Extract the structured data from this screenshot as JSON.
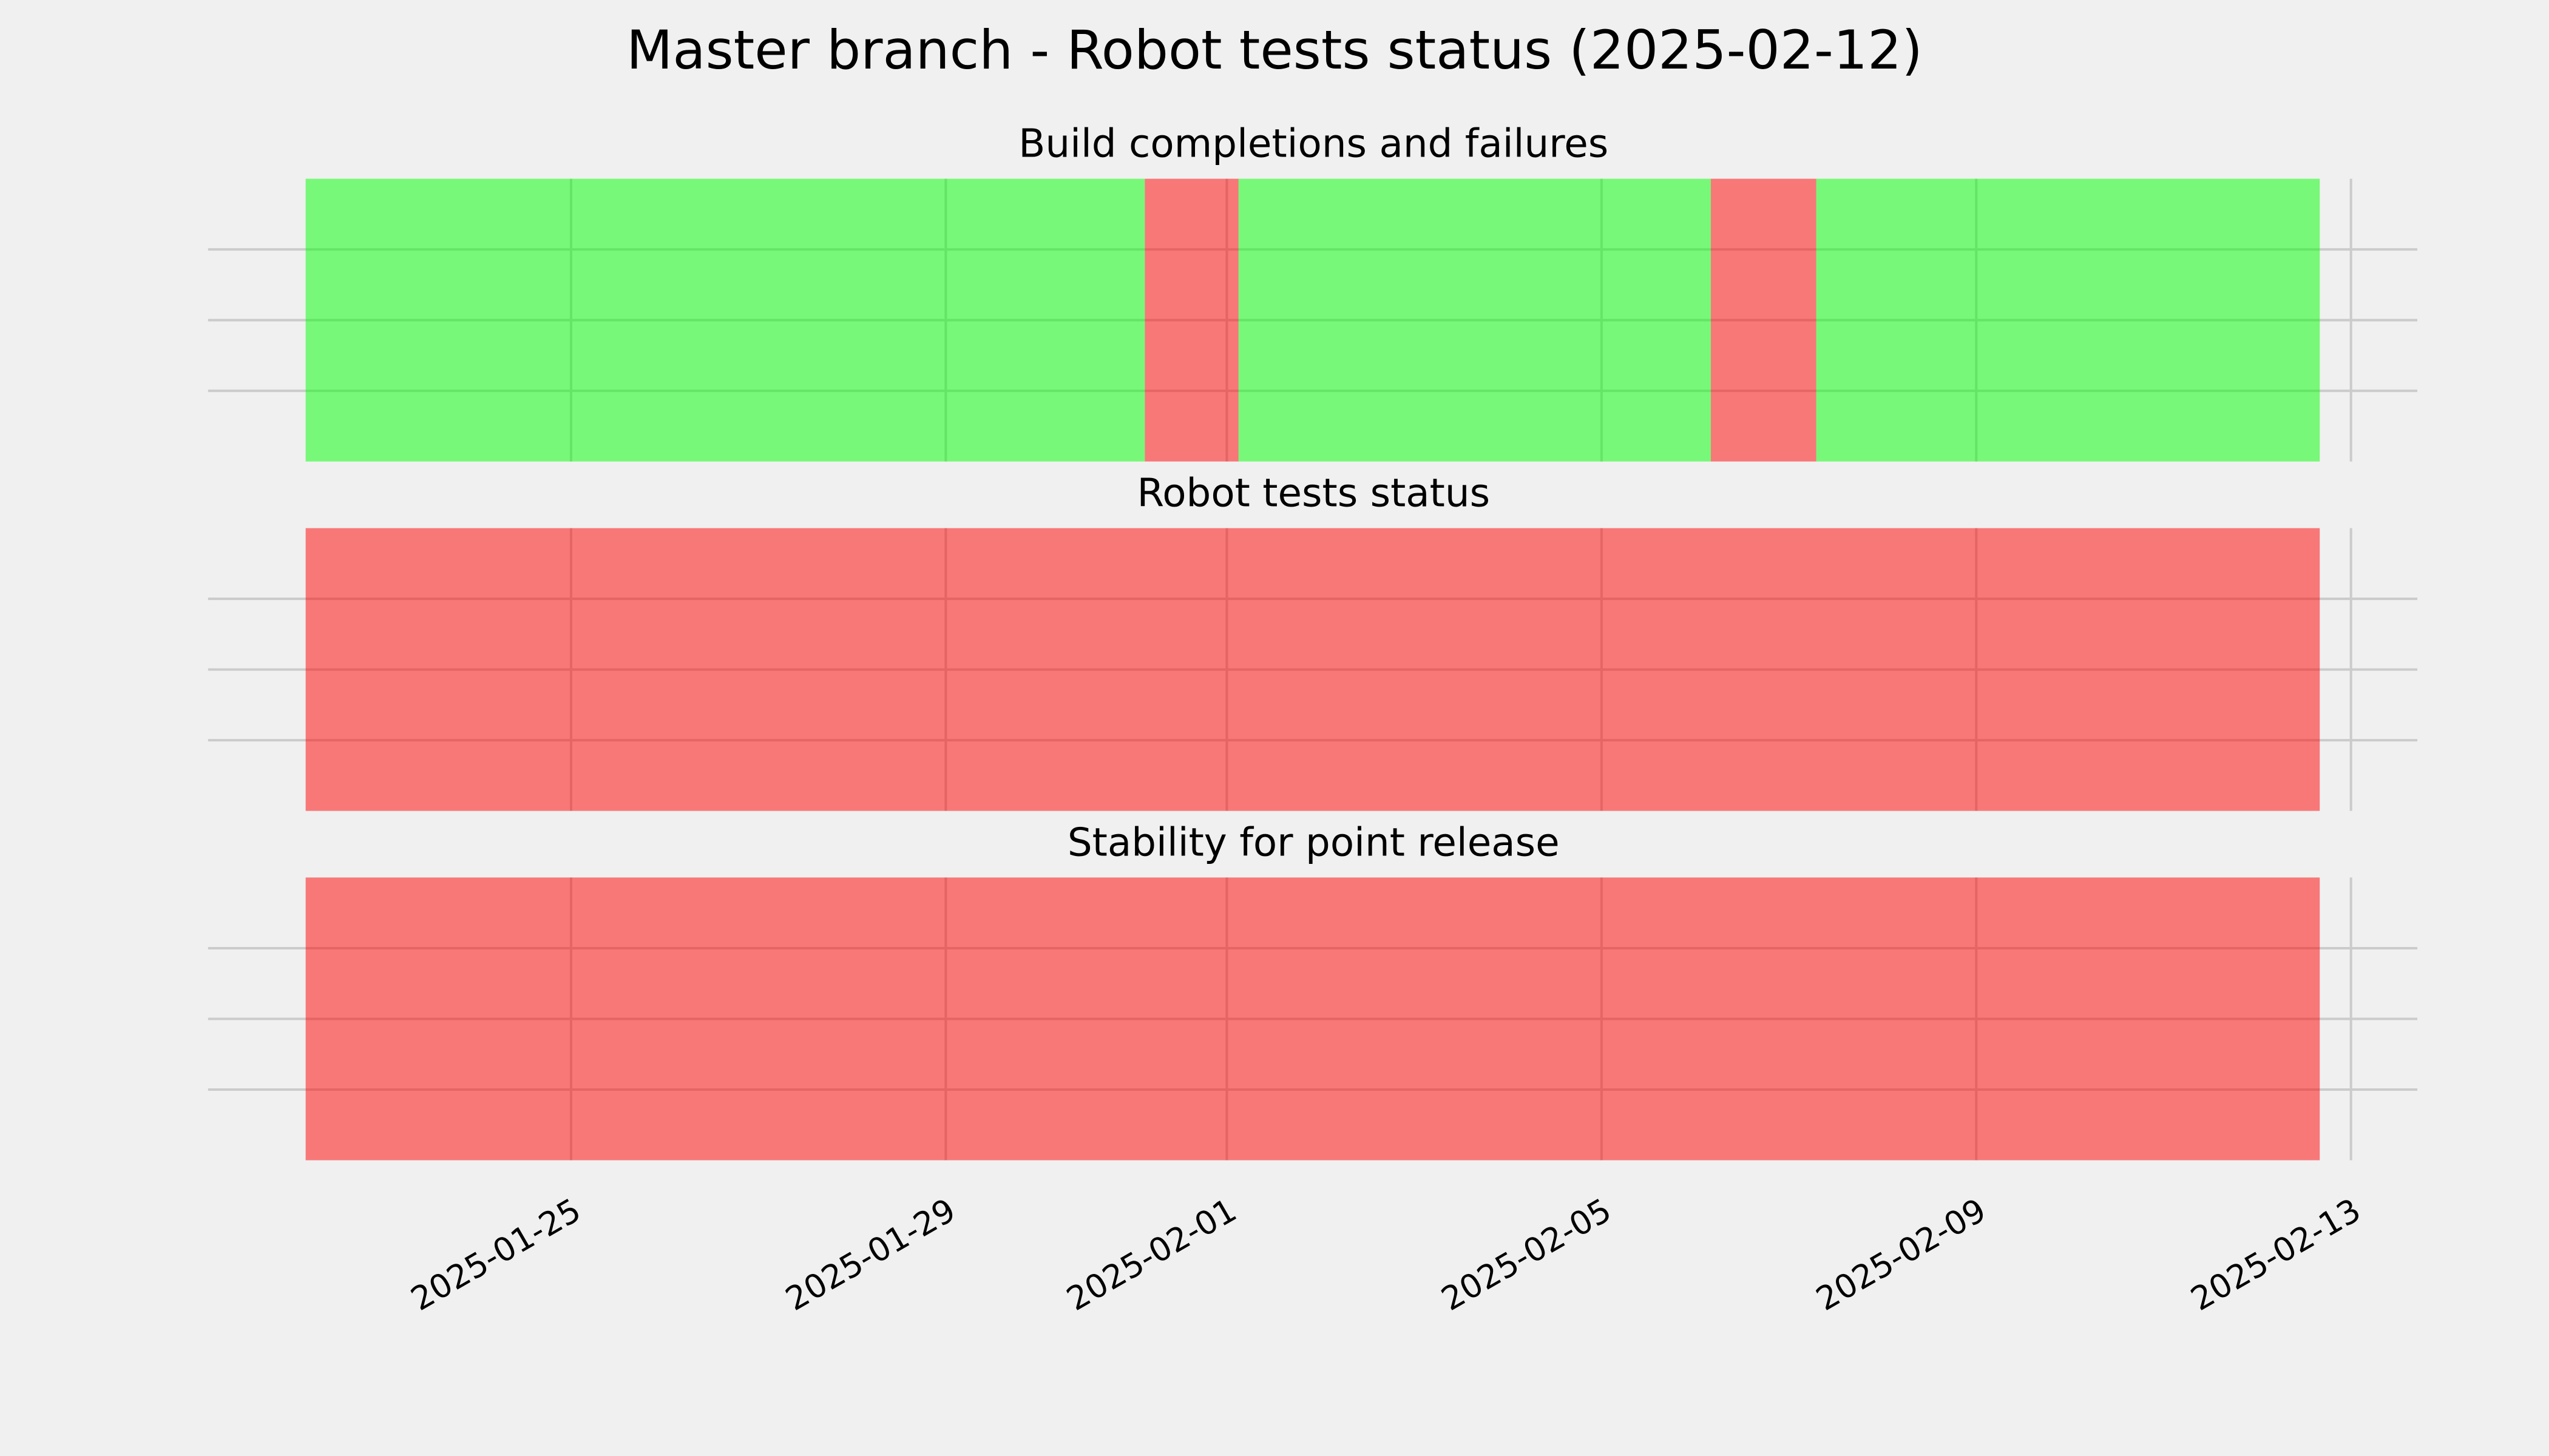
{
  "title": "Master branch - Robot tests status (2025-02-12)",
  "chart_data": [
    {
      "type": "timeline",
      "title": "Build completions and failures",
      "segments": [
        {
          "start": "2025-01-22T04:00",
          "end": "2025-01-31T03:00",
          "color": "#00ff00"
        },
        {
          "start": "2025-01-31T03:00",
          "end": "2025-02-01T03:00",
          "color": "#ff0000"
        },
        {
          "start": "2025-02-01T03:00",
          "end": "2025-02-06T04:00",
          "color": "#00ff00"
        },
        {
          "start": "2025-02-06T04:00",
          "end": "2025-02-07T07:00",
          "color": "#ff0000"
        },
        {
          "start": "2025-02-07T07:00",
          "end": "2025-02-12T16:00",
          "color": "#00ff00"
        }
      ],
      "ylim": [
        0,
        1
      ],
      "yticks": [
        0.25,
        0.5,
        0.75
      ],
      "grid": true
    },
    {
      "type": "timeline",
      "title": "Robot tests status",
      "segments": [
        {
          "start": "2025-01-22T04:00",
          "end": "2025-02-12T16:00",
          "color": "#ff0000"
        }
      ],
      "ylim": [
        0,
        1
      ],
      "yticks": [
        0.25,
        0.5,
        0.75
      ],
      "grid": true
    },
    {
      "type": "timeline",
      "title": "Stability for point release",
      "segments": [
        {
          "start": "2025-01-22T04:00",
          "end": "2025-02-12T16:00",
          "color": "#ff0000"
        }
      ],
      "ylim": [
        0,
        1
      ],
      "yticks": [
        0.25,
        0.5,
        0.75
      ],
      "grid": true,
      "xlim": [
        "2025-01-21T03:00",
        "2025-02-13T17:00"
      ],
      "xticks": [
        "2025-01-25",
        "2025-01-29",
        "2025-02-01",
        "2025-02-05",
        "2025-02-09",
        "2025-02-13"
      ]
    }
  ]
}
